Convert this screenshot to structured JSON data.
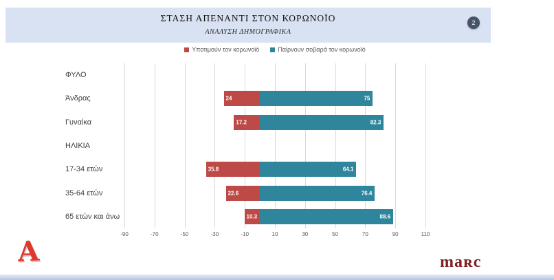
{
  "header": {
    "title": "ΣΤΑΣΗ ΑΠΕΝΑΝΤΙ ΣΤΟΝ ΚΟΡΩΝΟΪΟ",
    "subtitle": "ΑΝΑΛΥΣΗ ΔΗΜΟΓΡΑΦΙΚΑ",
    "page_number": "2"
  },
  "chart_data": {
    "type": "bar",
    "variant": "horizontal-diverging",
    "legend": [
      {
        "label": "Υποτιμούν τον κορωνοϊό",
        "color": "#bd4a47"
      },
      {
        "label": "Παίρνουν σοβαρά τον κορωνοϊό",
        "color": "#2f869c"
      }
    ],
    "rows": [
      {
        "label": "ΦΥΛΟ",
        "header": true
      },
      {
        "label": "Άνδρας",
        "underestimate": 24,
        "serious": 75
      },
      {
        "label": "Γυναίκα",
        "underestimate": 17.2,
        "serious": 82.3
      },
      {
        "label": "ΗΛΙΚΙΑ",
        "header": true
      },
      {
        "label": "17-34 ετών",
        "underestimate": 35.8,
        "serious": 64.1
      },
      {
        "label": "35-64 ετών",
        "underestimate": 22.6,
        "serious": 76.4
      },
      {
        "label": "65 ετών και άνω",
        "underestimate": 10.3,
        "serious": 88.6
      }
    ],
    "x_ticks": [
      -90,
      -70,
      -50,
      -30,
      -10,
      10,
      30,
      50,
      70,
      90,
      110
    ],
    "xlim": [
      -90,
      110
    ],
    "grid": true,
    "note": "underestimate values are drawn to the left of zero, serious values to the right"
  },
  "footer": {
    "alpha_logo_text": "Α",
    "marc_logo_text": "maʀc"
  },
  "colors": {
    "header_bg": "#d9e2f3",
    "badge_bg": "#44546a",
    "bar_left": "#bd4a47",
    "bar_right": "#2f869c",
    "gridline": "#d9d9d9",
    "axis_text": "#595959"
  }
}
